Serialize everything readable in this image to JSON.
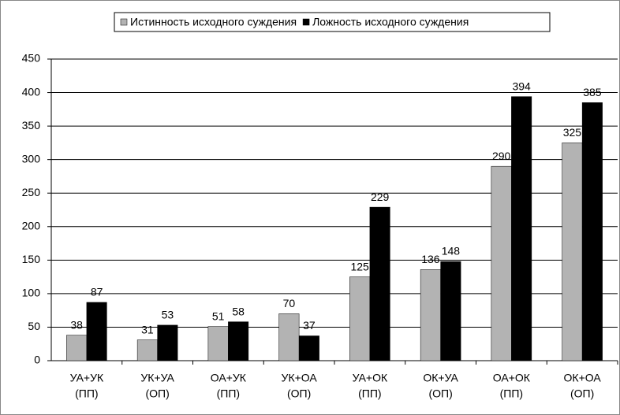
{
  "chart_data": {
    "type": "bar",
    "categories": [
      [
        "УА+УК",
        "(ПП)"
      ],
      [
        "УК+УА",
        "(ОП)"
      ],
      [
        "ОА+УК",
        "(ПП)"
      ],
      [
        "УК+ОА",
        "(ОП)"
      ],
      [
        "УА+ОК",
        "(ПП)"
      ],
      [
        "ОК+УА",
        "(ОП)"
      ],
      [
        "ОА+ОК",
        "(ПП)"
      ],
      [
        "ОК+ОА",
        "(ОП)"
      ]
    ],
    "series": [
      {
        "name": "Истинность исходного суждения",
        "color": "#b3b3b3",
        "values": [
          38,
          31,
          51,
          70,
          125,
          136,
          290,
          325
        ]
      },
      {
        "name": "Ложность исходного суждения",
        "color": "#000000",
        "values": [
          87,
          53,
          58,
          37,
          229,
          148,
          394,
          385
        ]
      }
    ],
    "ylim": [
      0,
      450
    ],
    "yticks": [
      0,
      50,
      100,
      150,
      200,
      250,
      300,
      350,
      400,
      450
    ],
    "grid": true,
    "legend": "top"
  }
}
